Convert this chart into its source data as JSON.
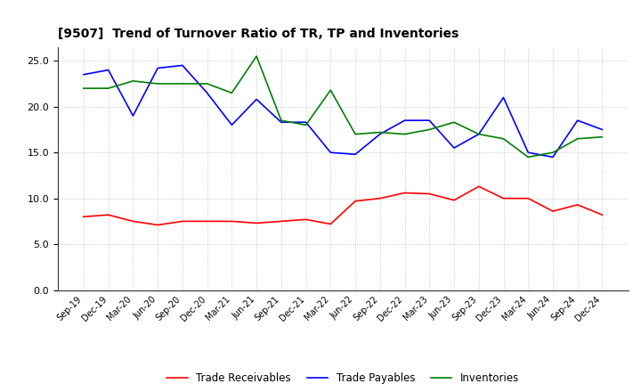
{
  "title": "[9507]  Trend of Turnover Ratio of TR, TP and Inventories",
  "x_labels": [
    "Sep-19",
    "Dec-19",
    "Mar-20",
    "Jun-20",
    "Sep-20",
    "Dec-20",
    "Mar-21",
    "Jun-21",
    "Sep-21",
    "Dec-21",
    "Mar-22",
    "Jun-22",
    "Sep-22",
    "Dec-22",
    "Mar-23",
    "Jun-23",
    "Sep-23",
    "Dec-23",
    "Mar-24",
    "Jun-24",
    "Sep-24",
    "Dec-24"
  ],
  "trade_receivables": [
    8.0,
    8.2,
    7.5,
    7.1,
    7.5,
    7.5,
    7.5,
    7.3,
    7.5,
    7.7,
    7.2,
    9.7,
    10.0,
    10.6,
    10.5,
    9.8,
    11.3,
    10.0,
    10.0,
    8.6,
    9.3,
    8.2
  ],
  "trade_payables": [
    23.5,
    24.0,
    19.0,
    24.2,
    24.5,
    21.5,
    18.0,
    20.8,
    18.3,
    18.3,
    15.0,
    14.8,
    17.0,
    18.5,
    18.5,
    15.5,
    17.0,
    21.0,
    15.0,
    14.5,
    18.5,
    17.5
  ],
  "inventories": [
    22.0,
    22.0,
    22.8,
    22.5,
    22.5,
    22.5,
    21.5,
    25.5,
    18.5,
    18.0,
    21.8,
    17.0,
    17.2,
    17.0,
    17.5,
    18.3,
    17.0,
    16.5,
    14.5,
    15.0,
    16.5,
    16.7
  ],
  "ylim": [
    0.0,
    26.5
  ],
  "yticks": [
    0.0,
    5.0,
    10.0,
    15.0,
    20.0,
    25.0
  ],
  "line_color_tr": "#FF0000",
  "line_color_tp": "#0000FF",
  "line_color_inv": "#008000",
  "legend_tr": "Trade Receivables",
  "legend_tp": "Trade Payables",
  "legend_inv": "Inventories",
  "bg_color": "#FFFFFF",
  "grid_color": "#BBBBBB"
}
